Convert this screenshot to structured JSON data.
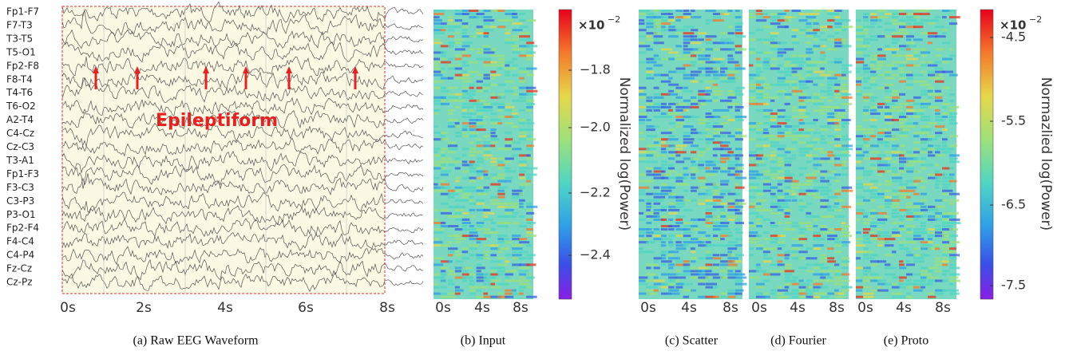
{
  "panels": [
    {
      "caption": "(a) Raw EEG Waveform",
      "channels": [
        "Fp1-F7",
        "F7-T3",
        "T3-T5",
        "T5-O1",
        "Fp2-F8",
        "F8-T4",
        "T4-T6",
        "T6-O2",
        "A2-T4",
        "C4-Cz",
        "Cz-C3",
        "T3-A1",
        "Fp1-F3",
        "F3-C3",
        "C3-P3",
        "P3-O1",
        "Fp2-F4",
        "F4-C4",
        "C4-P4",
        "Fz-Cz",
        "Cz-Pz"
      ],
      "xticks": [
        "0s",
        "2s",
        "4s",
        "6s",
        "8s"
      ],
      "annotation": "Epileptiform"
    },
    {
      "caption": "(b) Input",
      "xticks": [
        "0s",
        "4s",
        "8s"
      ]
    },
    {
      "caption": "(c) Scatter",
      "xticks": [
        "0s",
        "4s",
        "8s"
      ]
    },
    {
      "caption": "(d) Fourier",
      "xticks": [
        "0s",
        "4s",
        "8s"
      ]
    },
    {
      "caption": "(e) Proto",
      "xticks": [
        "0s",
        "4s",
        "8s"
      ]
    }
  ],
  "colorbars": [
    {
      "label": "Normalized log(Power)",
      "scale_base": "×10",
      "scale_exp": "−2",
      "ticks": [
        "−1.8",
        "−2.0",
        "−2.2",
        "−2.4"
      ]
    },
    {
      "label": "Normazlied log(Power)",
      "scale_base": "×10",
      "scale_exp": "−2",
      "ticks": [
        "-4.5",
        "-5.5",
        "-6.5",
        "-7.5"
      ]
    }
  ]
}
